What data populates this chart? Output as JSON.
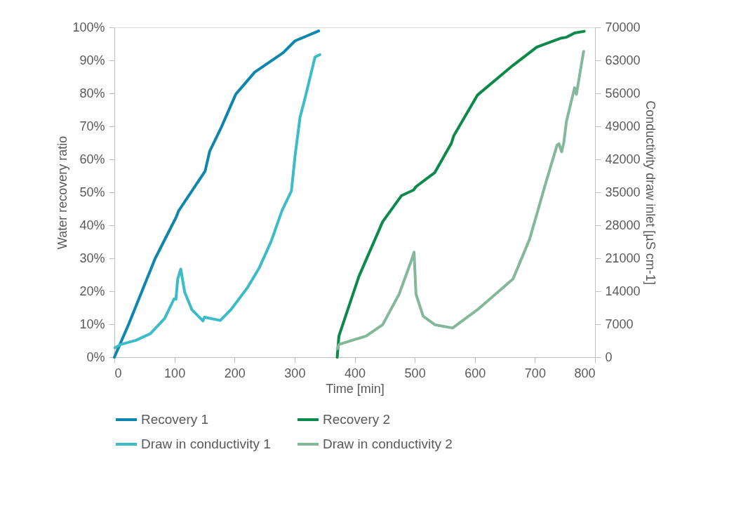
{
  "chart_data": {
    "type": "line",
    "xlabel": "Time [min]",
    "ylabel": "Water recovery ratio",
    "y2label": "Conductivity draw inlet [µS cm-1]",
    "xlim": [
      0,
      800
    ],
    "xticks": [
      0,
      100,
      200,
      300,
      400,
      500,
      600,
      700,
      800
    ],
    "ylim": [
      0,
      100
    ],
    "yticks": [
      {
        "value": 0,
        "label": "0%"
      },
      {
        "value": 10,
        "label": "10%"
      },
      {
        "value": 20,
        "label": "20%"
      },
      {
        "value": 30,
        "label": "30%"
      },
      {
        "value": 40,
        "label": "40%"
      },
      {
        "value": 50,
        "label": "50%"
      },
      {
        "value": 60,
        "label": "60%"
      },
      {
        "value": 70,
        "label": "70%"
      },
      {
        "value": 80,
        "label": "80%"
      },
      {
        "value": 90,
        "label": "90%"
      },
      {
        "value": 100,
        "label": "100%"
      }
    ],
    "y2lim": [
      0,
      70000
    ],
    "y2ticks": [
      0,
      7000,
      14000,
      21000,
      28000,
      35000,
      42000,
      49000,
      56000,
      63000,
      70000
    ],
    "grid": false,
    "legend": "bottom",
    "marker": "none",
    "line_style": "solid",
    "series": [
      {
        "name": "Recovery 1",
        "color": "#0e86b0",
        "x": [
          0,
          24.5,
          67.8,
          91.5,
          103,
          107,
          151,
          158.6,
          178,
          202,
          233.5,
          281,
          300.7,
          340
        ],
        "values": [
          0,
          10.3,
          29.9,
          38.4,
          42.5,
          44.4,
          56.4,
          62.4,
          69.7,
          79.7,
          86.4,
          92.3,
          95.9,
          98.9
        ]
      },
      {
        "name": "Recovery 2",
        "color": "#0b8a4a",
        "x": [
          370.9,
          373.7,
          407,
          446.6,
          478,
          498,
          502,
          533.4,
          561,
          565,
          604.5,
          663.5,
          703,
          742.5,
          752.4,
          766,
          782
        ],
        "values": [
          0,
          6.4,
          24.5,
          41.1,
          49,
          50.7,
          51.7,
          56,
          64.9,
          67.2,
          79.5,
          88.5,
          94,
          96.7,
          97,
          98.3,
          98.8
        ]
      },
      {
        "name": "Draw in conductivity 1",
        "color": "#3bbcc8",
        "axis": "y2",
        "x": [
          1,
          10.6,
          36,
          60,
          83.6,
          99.4,
          102.5,
          105.4,
          110.5,
          117,
          129,
          147.5,
          150,
          176.3,
          194,
          221.7,
          241.3,
          261,
          279,
          294.7,
          300.7,
          309,
          318.4,
          334,
          342
        ],
        "values": [
          2000,
          2700,
          3600,
          5000,
          8200,
          12400,
          12300,
          16600,
          18700,
          13800,
          10100,
          7700,
          8500,
          7800,
          10100,
          14800,
          19000,
          24600,
          31100,
          35300,
          42700,
          50900,
          55500,
          63700,
          64200
        ]
      },
      {
        "name": "Draw in conductivity 2",
        "color": "#85b89a",
        "axis": "y2",
        "x": [
          371,
          373.7,
          419,
          446.6,
          474,
          494,
          498.8,
          502,
          514,
          533.4,
          563,
          604.5,
          663.5,
          691,
          718.5,
          736.8,
          740,
          744.5,
          748,
          752.4,
          766,
          769,
          771,
          781
        ],
        "values": [
          1800,
          2700,
          4500,
          6900,
          13400,
          20400,
          22300,
          13400,
          8700,
          6900,
          6200,
          10100,
          16600,
          25000,
          37200,
          45000,
          45300,
          43600,
          45500,
          50000,
          57200,
          55800,
          57300,
          64900
        ]
      }
    ]
  }
}
